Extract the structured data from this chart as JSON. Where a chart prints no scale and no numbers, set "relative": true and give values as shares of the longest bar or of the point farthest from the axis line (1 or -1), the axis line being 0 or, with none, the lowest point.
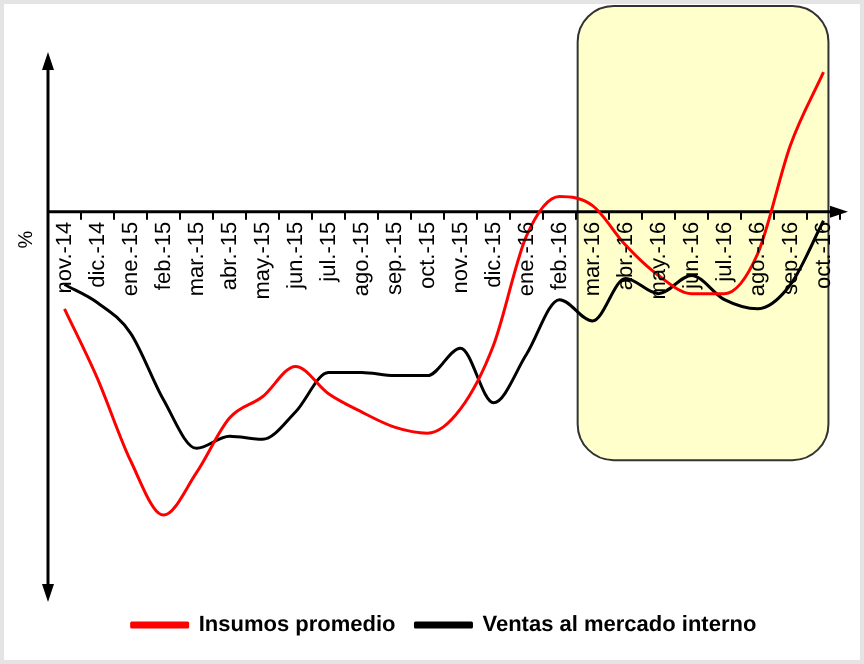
{
  "chart_data": {
    "type": "line",
    "ylabel": "%",
    "relative": true,
    "legend": "bottom",
    "marker": "none",
    "categories": [
      "nov.-14",
      "dic.-14",
      "ene.-15",
      "feb.-15",
      "mar.-15",
      "abr.-15",
      "may.-15",
      "jun.-15",
      "jul.-15",
      "ago.-15",
      "sep.-15",
      "oct.-15",
      "nov.-15",
      "dic.-15",
      "ene.-16",
      "feb.-16",
      "mar.-16",
      "abr.-16",
      "may.-16",
      "jun.-16",
      "jul.-16",
      "ago.-16",
      "sep.-16",
      "oct.-16"
    ],
    "series": [
      {
        "name": "Insumos promedio",
        "color": "#ff0000",
        "values": [
          -0.32,
          -0.55,
          -0.82,
          -1,
          -0.86,
          -0.68,
          -0.61,
          -0.51,
          -0.6,
          -0.66,
          -0.71,
          -0.73,
          -0.65,
          -0.44,
          -0.08,
          0.05,
          0.02,
          -0.11,
          -0.21,
          -0.27,
          -0.27,
          -0.14,
          0.22,
          0.46
        ]
      },
      {
        "name": "Ventas al mercado interno",
        "color": "#000000",
        "values": [
          -0.24,
          -0.3,
          -0.4,
          -0.62,
          -0.78,
          -0.74,
          -0.75,
          -0.66,
          -0.53,
          -0.53,
          -0.54,
          -0.54,
          -0.45,
          -0.63,
          -0.47,
          -0.29,
          -0.36,
          -0.22,
          -0.27,
          -0.21,
          -0.29,
          -0.32,
          -0.24,
          -0.03
        ]
      }
    ],
    "bands": [
      {
        "axis": "x",
        "from": "mar.-16",
        "to": "oct.-16",
        "color": "#ffffcc"
      }
    ]
  }
}
